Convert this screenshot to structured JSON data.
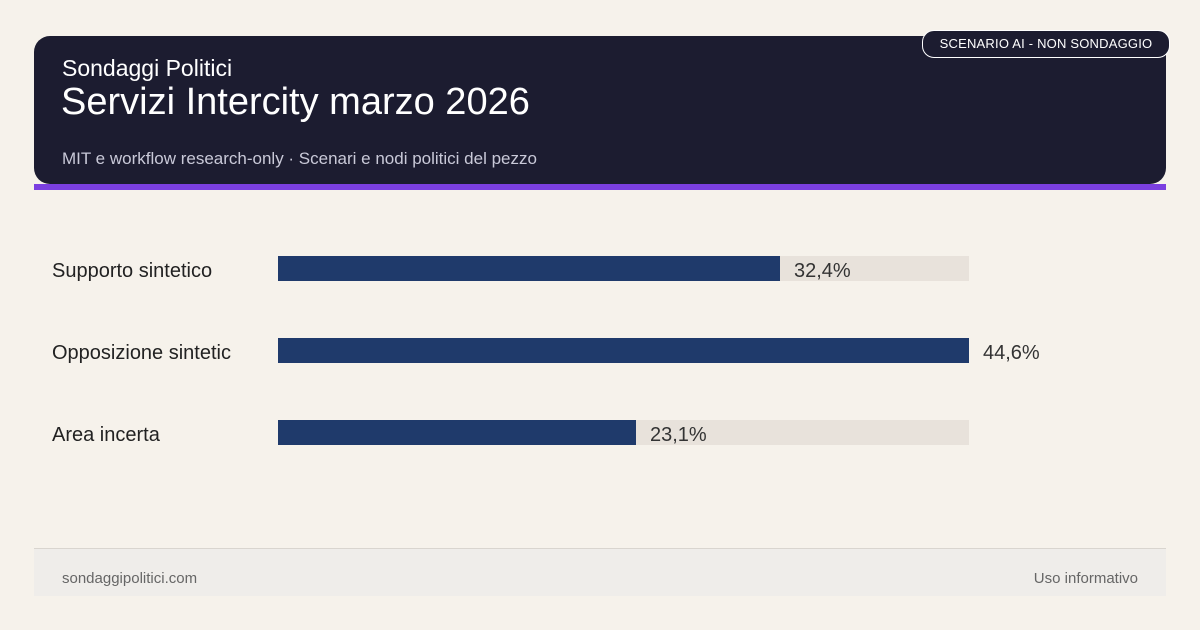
{
  "header": {
    "brand": "Sondaggi Politici",
    "title": "Servizi Intercity marzo 2026",
    "subtitle": "MIT e workflow research-only · Scenari e nodi politici del pezzo",
    "badge": "SCENARIO AI - NON SONDAGGIO"
  },
  "colors": {
    "header_bg": "#1c1c30",
    "accent": "#7b3fe0",
    "bar": "#1f3a6b",
    "track": "#e8e2db",
    "page_bg": "#f6f2eb"
  },
  "chart_data": {
    "type": "bar",
    "orientation": "horizontal",
    "categories": [
      "Supporto sintetico",
      "Opposizione sintetic",
      "Area incerta"
    ],
    "values": [
      32.4,
      44.6,
      23.1
    ],
    "value_labels": [
      "32,4%",
      "44,6%",
      "23,1%"
    ],
    "xlim": [
      0,
      44.6
    ],
    "grid": false,
    "legend": "none"
  },
  "footer": {
    "left": "sondaggipolitici.com",
    "right": "Uso informativo"
  }
}
